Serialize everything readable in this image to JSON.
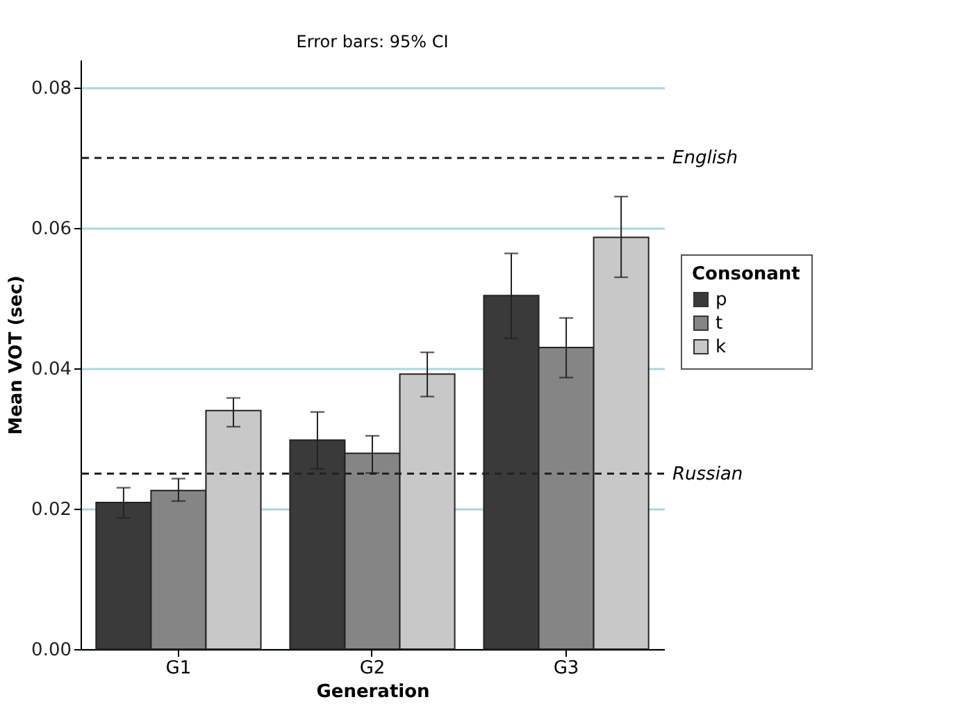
{
  "chart_data": {
    "type": "bar",
    "xlabel": "Generation",
    "ylabel": "Mean VOT (sec)",
    "legend_title": "Consonant",
    "categories": [
      "G1",
      "G2",
      "G3"
    ],
    "series": [
      {
        "name": "p",
        "color": "#3a3a3a",
        "values": [
          0.0209,
          0.0298,
          0.0504
        ],
        "errors": [
          [
            0.0187,
            0.023
          ],
          [
            0.0257,
            0.0338
          ],
          [
            0.0443,
            0.0564
          ]
        ]
      },
      {
        "name": "t",
        "color": "#858585",
        "values": [
          0.0226,
          0.0279,
          0.043
        ],
        "errors": [
          [
            0.0211,
            0.0243
          ],
          [
            0.0251,
            0.0304
          ],
          [
            0.0387,
            0.0472
          ]
        ]
      },
      {
        "name": "k",
        "color": "#c8c8c8",
        "values": [
          0.034,
          0.0392,
          0.0587
        ],
        "errors": [
          [
            0.0317,
            0.0358
          ],
          [
            0.036,
            0.0423
          ],
          [
            0.053,
            0.0645
          ]
        ]
      }
    ],
    "ylim": [
      0,
      0.084
    ],
    "yticks": [
      {
        "value": 0,
        "label": "0.00"
      },
      0.02,
      0.04,
      0.06,
      0.08
    ],
    "grid": "y",
    "legend": "right",
    "ref_lines": [
      {
        "axis": "y",
        "value": 0.07,
        "label": "English",
        "line_style": "dashed"
      },
      {
        "axis": "y",
        "value": 0.025,
        "label": "Russian",
        "line_style": "dashed"
      }
    ],
    "annotations": [
      "Error bars: 95% CI"
    ]
  }
}
